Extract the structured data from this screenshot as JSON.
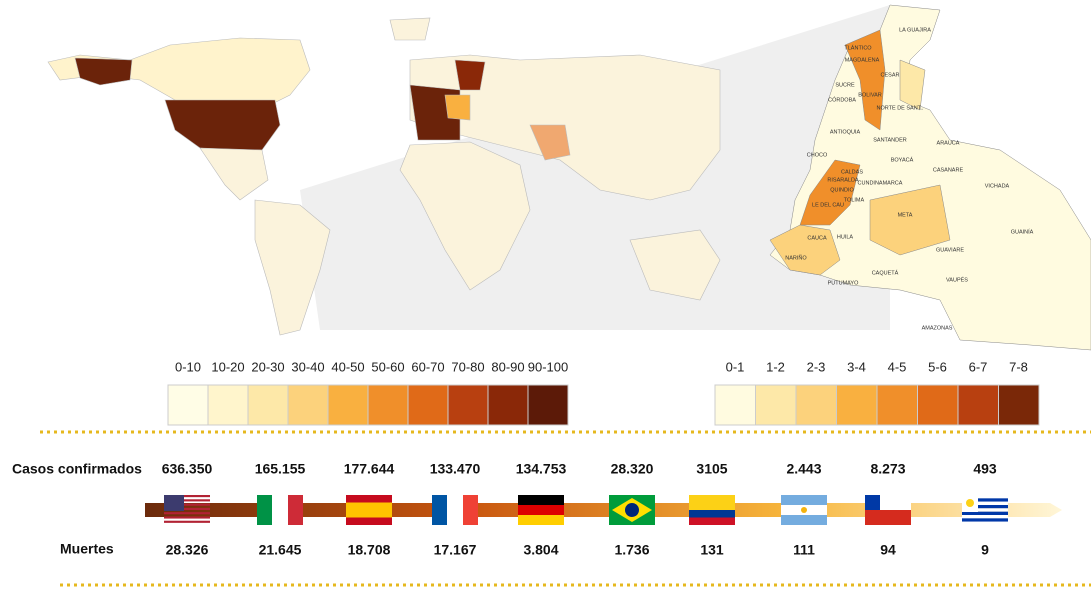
{
  "world_legend": {
    "ranges": [
      "0-10",
      "10-20",
      "20-30",
      "30-40",
      "40-50",
      "50-60",
      "60-70",
      "70-80",
      "80-90",
      "90-100"
    ]
  },
  "colombia_map": {
    "regions": [
      "LA GUAJIRA",
      "TLÁNTICO",
      "MAGDALENA",
      "CESAR",
      "SUCRE",
      "BOLIVAR",
      "NORTE DE SANT..",
      "CÓRDOBA",
      "ANTIOQUIA",
      "SANTANDER",
      "ARAUCA",
      "CHOCO",
      "BOYACÁ",
      "CASANARE",
      "CALDAS",
      "RISARALDA",
      "QUINDIO",
      "CUNDINAMARCA",
      "LE DEL CAU",
      "TOLIMA",
      "VICHADA",
      "META",
      "GUAINÍA",
      "CAUCA",
      "HUILA",
      "NARIÑO",
      "GUAVIARE",
      "CAQUETÁ",
      "VAUPÉS",
      "PUTUMAYO",
      "AMAZONAS"
    ]
  },
  "colombia_legend": {
    "ranges": [
      "0-1",
      "1-2",
      "2-3",
      "3-4",
      "4-5",
      "5-6",
      "6-7",
      "7-8"
    ]
  },
  "table": {
    "row_labels": [
      "Casos confirmados",
      "Muertes"
    ],
    "cases": [
      "636.350",
      "165.155",
      "177.644",
      "133.470",
      "134.753",
      "28.320",
      "3105",
      "2.443",
      "8.273",
      "493"
    ],
    "deaths": [
      "28.326",
      "21.645",
      "18.708",
      "17.167",
      "3.804",
      "1.736",
      "131",
      "111",
      "94",
      "9"
    ]
  }
}
